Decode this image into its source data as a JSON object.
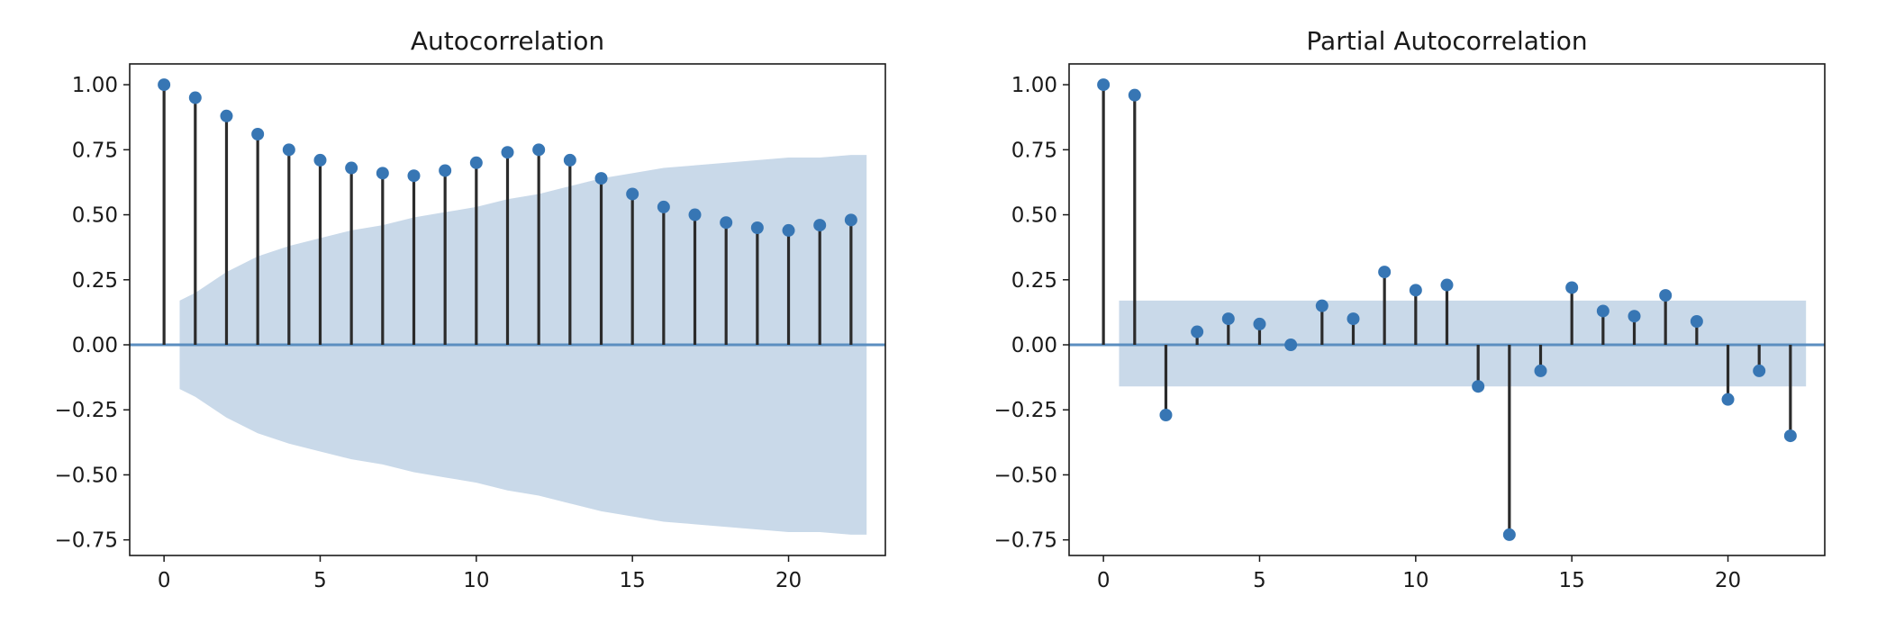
{
  "chart_data": [
    {
      "type": "stem",
      "title": "Autocorrelation",
      "xlabel": "",
      "ylabel": "",
      "xlim": [
        -1.1,
        23.1
      ],
      "ylim": [
        -0.81,
        1.08
      ],
      "x_ticks": [
        0,
        5,
        10,
        15,
        20
      ],
      "x_tick_labels": [
        "0",
        "5",
        "10",
        "15",
        "20"
      ],
      "y_ticks": [
        1.0,
        0.75,
        0.5,
        0.25,
        0.0,
        -0.25,
        -0.5,
        -0.75
      ],
      "y_tick_labels": [
        "1.00",
        "0.75",
        "0.50",
        "0.25",
        "0.00",
        "−0.25",
        "−0.50",
        "−0.75"
      ],
      "grid": false,
      "lags": [
        0,
        1,
        2,
        3,
        4,
        5,
        6,
        7,
        8,
        9,
        10,
        11,
        12,
        13,
        14,
        15,
        16,
        17,
        18,
        19,
        20,
        21,
        22
      ],
      "values": [
        1.0,
        0.95,
        0.88,
        0.81,
        0.75,
        0.71,
        0.68,
        0.66,
        0.65,
        0.67,
        0.7,
        0.74,
        0.75,
        0.71,
        0.64,
        0.58,
        0.53,
        0.5,
        0.47,
        0.45,
        0.44,
        0.46,
        0.48
      ],
      "confidence_band": {
        "x": [
          0.5,
          1,
          2,
          3,
          4,
          5,
          6,
          7,
          8,
          9,
          10,
          11,
          12,
          13,
          14,
          15,
          16,
          17,
          18,
          19,
          20,
          21,
          22,
          22.5
        ],
        "upper": [
          0.17,
          0.2,
          0.28,
          0.34,
          0.38,
          0.41,
          0.44,
          0.46,
          0.49,
          0.51,
          0.53,
          0.56,
          0.58,
          0.61,
          0.64,
          0.66,
          0.68,
          0.69,
          0.7,
          0.71,
          0.72,
          0.72,
          0.73,
          0.73
        ],
        "lower": [
          -0.17,
          -0.2,
          -0.28,
          -0.34,
          -0.38,
          -0.41,
          -0.44,
          -0.46,
          -0.49,
          -0.51,
          -0.53,
          -0.56,
          -0.58,
          -0.61,
          -0.64,
          -0.66,
          -0.68,
          -0.69,
          -0.7,
          -0.71,
          -0.72,
          -0.72,
          -0.73,
          -0.73
        ]
      },
      "colors": {
        "marker": "#3776b4",
        "stem": "#2b2b2b",
        "zero_line": "#5b8ec0",
        "band": "#c9d9e9"
      }
    },
    {
      "type": "stem",
      "title": "Partial Autocorrelation",
      "xlabel": "",
      "ylabel": "",
      "xlim": [
        -1.1,
        23.1
      ],
      "ylim": [
        -0.81,
        1.08
      ],
      "x_ticks": [
        0,
        5,
        10,
        15,
        20
      ],
      "x_tick_labels": [
        "0",
        "5",
        "10",
        "15",
        "20"
      ],
      "y_ticks": [
        1.0,
        0.75,
        0.5,
        0.25,
        0.0,
        -0.25,
        -0.5,
        -0.75
      ],
      "y_tick_labels": [
        "1.00",
        "0.75",
        "0.50",
        "0.25",
        "0.00",
        "−0.25",
        "−0.50",
        "−0.75"
      ],
      "grid": false,
      "lags": [
        0,
        1,
        2,
        3,
        4,
        5,
        6,
        7,
        8,
        9,
        10,
        11,
        12,
        13,
        14,
        15,
        16,
        17,
        18,
        19,
        20,
        21,
        22
      ],
      "values": [
        1.0,
        0.96,
        -0.27,
        0.05,
        0.1,
        0.08,
        0.0,
        0.15,
        0.1,
        0.28,
        0.21,
        0.23,
        -0.16,
        -0.73,
        -0.1,
        0.22,
        0.13,
        0.11,
        0.19,
        0.09,
        -0.21,
        -0.1,
        -0.35
      ],
      "confidence_band": {
        "x": [
          0.5,
          22.5
        ],
        "upper": [
          0.17,
          0.17
        ],
        "lower": [
          -0.16,
          -0.16
        ]
      },
      "colors": {
        "marker": "#3776b4",
        "stem": "#2b2b2b",
        "zero_line": "#5b8ec0",
        "band": "#c9d9e9"
      }
    }
  ]
}
